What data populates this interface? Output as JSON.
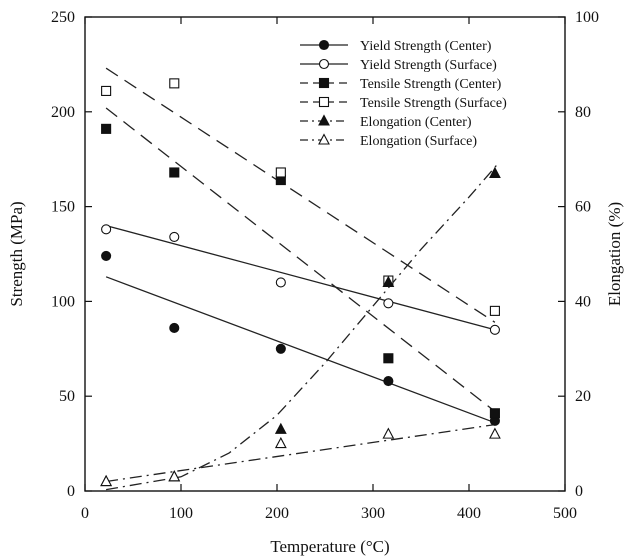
{
  "chart_data": {
    "type": "scatter",
    "title": "",
    "xlabel": "Temperature (°C)",
    "ylabel": "Strength (MPa)",
    "y2label": "Elongation (%)",
    "xlim": [
      0,
      500
    ],
    "ylim": [
      0,
      250
    ],
    "y2lim": [
      0,
      100
    ],
    "xticks": [
      0,
      100,
      200,
      300,
      400,
      500
    ],
    "yticks": [
      0,
      50,
      100,
      150,
      200,
      250
    ],
    "y2ticks": [
      0,
      20,
      40,
      60,
      80,
      100
    ],
    "grid": false,
    "legend_position": "top-right",
    "series": [
      {
        "name": "Yield Strength (Center)",
        "axis": "left",
        "marker": "filled-circle",
        "line": "solid",
        "x": [
          22,
          93,
          204,
          316,
          427
        ],
        "y": [
          124,
          86,
          75,
          58,
          37
        ],
        "fit": [
          [
            22,
            113
          ],
          [
            427,
            36
          ]
        ]
      },
      {
        "name": "Yield Strength (Surface)",
        "axis": "left",
        "marker": "open-circle",
        "line": "solid",
        "x": [
          22,
          93,
          204,
          316,
          427
        ],
        "y": [
          138,
          134,
          110,
          99,
          85
        ],
        "fit": [
          [
            22,
            140
          ],
          [
            427,
            85
          ]
        ]
      },
      {
        "name": "Tensile Strength (Center)",
        "axis": "left",
        "marker": "filled-square",
        "line": "dashed",
        "x": [
          22,
          93,
          204,
          316,
          427
        ],
        "y": [
          191,
          168,
          164,
          70,
          41
        ],
        "fit": [
          [
            22,
            202
          ],
          [
            427,
            42
          ]
        ]
      },
      {
        "name": "Tensile Strength (Surface)",
        "axis": "left",
        "marker": "open-square",
        "line": "dashed",
        "x": [
          22,
          93,
          204,
          316,
          427
        ],
        "y": [
          211,
          215,
          168,
          111,
          95
        ],
        "fit": [
          [
            22,
            223
          ],
          [
            427,
            89
          ]
        ]
      },
      {
        "name": "Elongation (Center)",
        "axis": "right",
        "marker": "filled-triangle",
        "line": "dash-dot-curve",
        "x": [
          22,
          93,
          204,
          316,
          427
        ],
        "y": [
          2,
          3,
          13,
          44,
          67
        ],
        "fit_curve": [
          [
            22,
            0.3
          ],
          [
            100,
            3
          ],
          [
            150,
            8
          ],
          [
            200,
            16
          ],
          [
            250,
            27
          ],
          [
            300,
            39
          ],
          [
            350,
            51
          ],
          [
            400,
            62
          ],
          [
            430,
            69
          ]
        ]
      },
      {
        "name": "Elongation (Surface)",
        "axis": "right",
        "marker": "open-triangle",
        "line": "dash-dot",
        "x": [
          22,
          93,
          204,
          316,
          427
        ],
        "y": [
          2,
          3,
          10,
          12,
          12
        ],
        "fit": [
          [
            22,
            2
          ],
          [
            427,
            14
          ]
        ]
      }
    ]
  }
}
